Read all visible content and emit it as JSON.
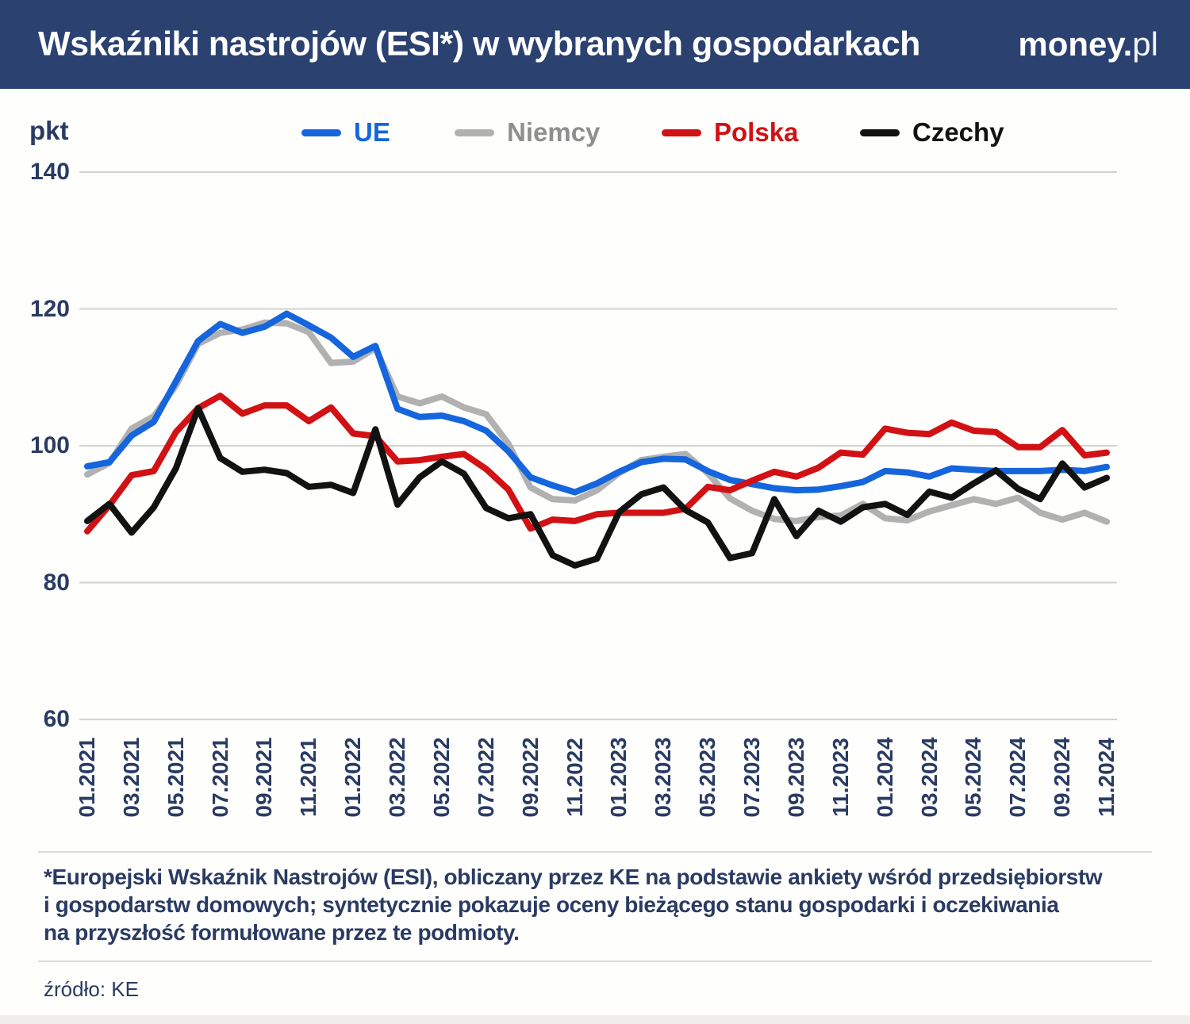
{
  "header": {
    "title": "Wskaźniki nastrojów (ESI*) w wybranych gospodarkach",
    "logo_bold": "money.",
    "logo_light": "pl"
  },
  "axis": {
    "unit_label": "pkt",
    "y_ticks": [
      140,
      120,
      100,
      80,
      60
    ],
    "x_tick_labels": [
      "01.2021",
      "03.2021",
      "05.2021",
      "07.2021",
      "09.2021",
      "11.2021",
      "01.2022",
      "03.2022",
      "05.2022",
      "07.2022",
      "09.2022",
      "11.2022",
      "01.2023",
      "03.2023",
      "05.2023",
      "07.2023",
      "09.2023",
      "11.2023",
      "01.2024",
      "03.2024",
      "05.2024",
      "07.2024",
      "09.2024",
      "11.2024"
    ]
  },
  "colors": {
    "header_bg": "#2b4170",
    "text_navy": "#2a3b63",
    "gridline": "#d2d2d2",
    "legend_gray_text": "#8f8f8f"
  },
  "chart_data": {
    "type": "line",
    "title": "Wskaźniki nastrojów (ESI*) w wybranych gospodarkach",
    "ylabel": "pkt",
    "ylim": [
      60,
      140
    ],
    "grid": true,
    "legend_position": "top",
    "x": [
      "01.2021",
      "02.2021",
      "03.2021",
      "04.2021",
      "05.2021",
      "06.2021",
      "07.2021",
      "08.2021",
      "09.2021",
      "10.2021",
      "11.2021",
      "12.2021",
      "01.2022",
      "02.2022",
      "03.2022",
      "04.2022",
      "05.2022",
      "06.2022",
      "07.2022",
      "08.2022",
      "09.2022",
      "10.2022",
      "11.2022",
      "12.2022",
      "01.2023",
      "02.2023",
      "03.2023",
      "04.2023",
      "05.2023",
      "06.2023",
      "07.2023",
      "08.2023",
      "09.2023",
      "10.2023",
      "11.2023",
      "12.2023",
      "01.2024",
      "02.2024",
      "03.2024",
      "04.2024",
      "05.2024",
      "06.2024",
      "07.2024",
      "08.2024",
      "09.2024",
      "10.2024",
      "11.2024"
    ],
    "series": [
      {
        "name": "UE",
        "color": "#1565dd",
        "values": [
          97.0,
          97.6,
          101.5,
          103.5,
          109.4,
          115.3,
          117.8,
          116.5,
          117.4,
          119.3,
          117.6,
          115.8,
          113.0,
          114.6,
          105.4,
          104.2,
          104.4,
          103.6,
          102.2,
          99.2,
          95.4,
          94.2,
          93.2,
          94.5,
          96.2,
          97.6,
          98.1,
          98.0,
          96.3,
          95.0,
          94.4,
          93.8,
          93.5,
          93.6,
          94.1,
          94.7,
          96.3,
          96.1,
          95.5,
          96.7,
          96.5,
          96.3,
          96.3,
          96.3,
          96.5,
          96.3,
          96.9
        ]
      },
      {
        "name": "Niemcy",
        "color": "#b1b1b1",
        "values": [
          95.8,
          97.5,
          102.5,
          104.3,
          108.8,
          114.9,
          116.5,
          117.0,
          118.0,
          117.9,
          116.6,
          112.1,
          112.3,
          114.3,
          107.2,
          106.2,
          107.2,
          105.6,
          104.6,
          100.3,
          93.9,
          92.2,
          92.0,
          93.5,
          96.0,
          97.9,
          98.4,
          98.8,
          96.0,
          92.3,
          90.5,
          89.3,
          89.0,
          89.6,
          89.8,
          91.5,
          89.4,
          89.1,
          90.4,
          91.3,
          92.2,
          91.5,
          92.4,
          90.2,
          89.2,
          90.2,
          88.9
        ]
      },
      {
        "name": "Polska",
        "color": "#d21114",
        "values": [
          87.5,
          91.3,
          95.7,
          96.3,
          102.0,
          105.5,
          107.3,
          104.7,
          105.9,
          105.9,
          103.6,
          105.6,
          101.8,
          101.4,
          97.7,
          97.9,
          98.4,
          98.8,
          96.6,
          93.6,
          87.9,
          89.2,
          89.0,
          90.0,
          90.2,
          90.2,
          90.2,
          90.8,
          94.0,
          93.5,
          94.9,
          96.2,
          95.5,
          96.8,
          99.0,
          98.7,
          102.5,
          101.9,
          101.7,
          103.4,
          102.2,
          102.0,
          99.8,
          99.8,
          102.3,
          98.6,
          99.0
        ]
      },
      {
        "name": "Czechy",
        "color": "#121212",
        "values": [
          89.0,
          91.5,
          87.3,
          91.0,
          96.7,
          105.5,
          98.2,
          96.2,
          96.5,
          96.0,
          94.0,
          94.3,
          93.1,
          102.4,
          91.4,
          95.4,
          97.7,
          95.9,
          90.9,
          89.4,
          90.0,
          84.0,
          82.5,
          83.5,
          90.3,
          92.9,
          93.9,
          90.6,
          88.8,
          83.6,
          84.3,
          92.2,
          86.8,
          90.5,
          88.9,
          91.0,
          91.5,
          89.9,
          93.3,
          92.4,
          94.5,
          96.4,
          93.7,
          92.2,
          97.4,
          93.9,
          95.3
        ]
      }
    ]
  },
  "footer": {
    "note_lines": [
      "*Europejski Wskaźnik Nastrojów (ESI), obliczany przez KE na podstawie ankiety wśród przedsiębiorstw",
      "i gospodarstw domowych; syntetycznie pokazuje oceny bieżącego stanu gospodarki i oczekiwania",
      "na przyszłość formułowane przez te podmioty."
    ],
    "source": "źródło: KE"
  }
}
